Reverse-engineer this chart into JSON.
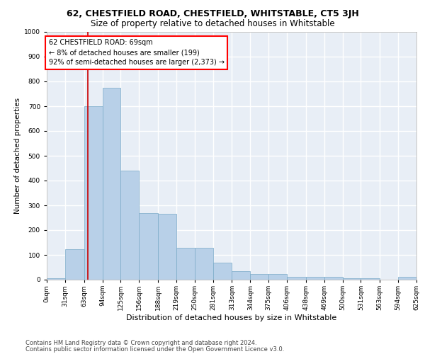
{
  "title": "62, CHESTFIELD ROAD, CHESTFIELD, WHITSTABLE, CT5 3JH",
  "subtitle": "Size of property relative to detached houses in Whitstable",
  "xlabel": "Distribution of detached houses by size in Whitstable",
  "ylabel": "Number of detached properties",
  "bar_color": "#b8d0e8",
  "bar_edge_color": "#7aaac8",
  "bg_color": "#e8eef6",
  "grid_color": "white",
  "annotation_text": "62 CHESTFIELD ROAD: 69sqm\n← 8% of detached houses are smaller (199)\n92% of semi-detached houses are larger (2,373) →",
  "vline_x": 69,
  "vline_color": "#cc0000",
  "footer1": "Contains HM Land Registry data © Crown copyright and database right 2024.",
  "footer2": "Contains public sector information licensed under the Open Government Licence v3.0.",
  "bin_edges": [
    0,
    31,
    63,
    94,
    125,
    156,
    188,
    219,
    250,
    281,
    313,
    344,
    375,
    406,
    438,
    469,
    500,
    531,
    563,
    594,
    625
  ],
  "bar_heights": [
    5,
    122,
    700,
    775,
    440,
    270,
    265,
    130,
    130,
    70,
    35,
    22,
    22,
    11,
    11,
    11,
    5,
    5,
    0,
    11
  ],
  "ylim": [
    0,
    1000
  ],
  "yticks": [
    0,
    100,
    200,
    300,
    400,
    500,
    600,
    700,
    800,
    900,
    1000
  ],
  "title_fontsize": 9,
  "subtitle_fontsize": 8.5,
  "xlabel_fontsize": 8,
  "ylabel_fontsize": 7.5,
  "tick_fontsize": 6.5,
  "footer_fontsize": 6,
  "annotation_fontsize": 7
}
